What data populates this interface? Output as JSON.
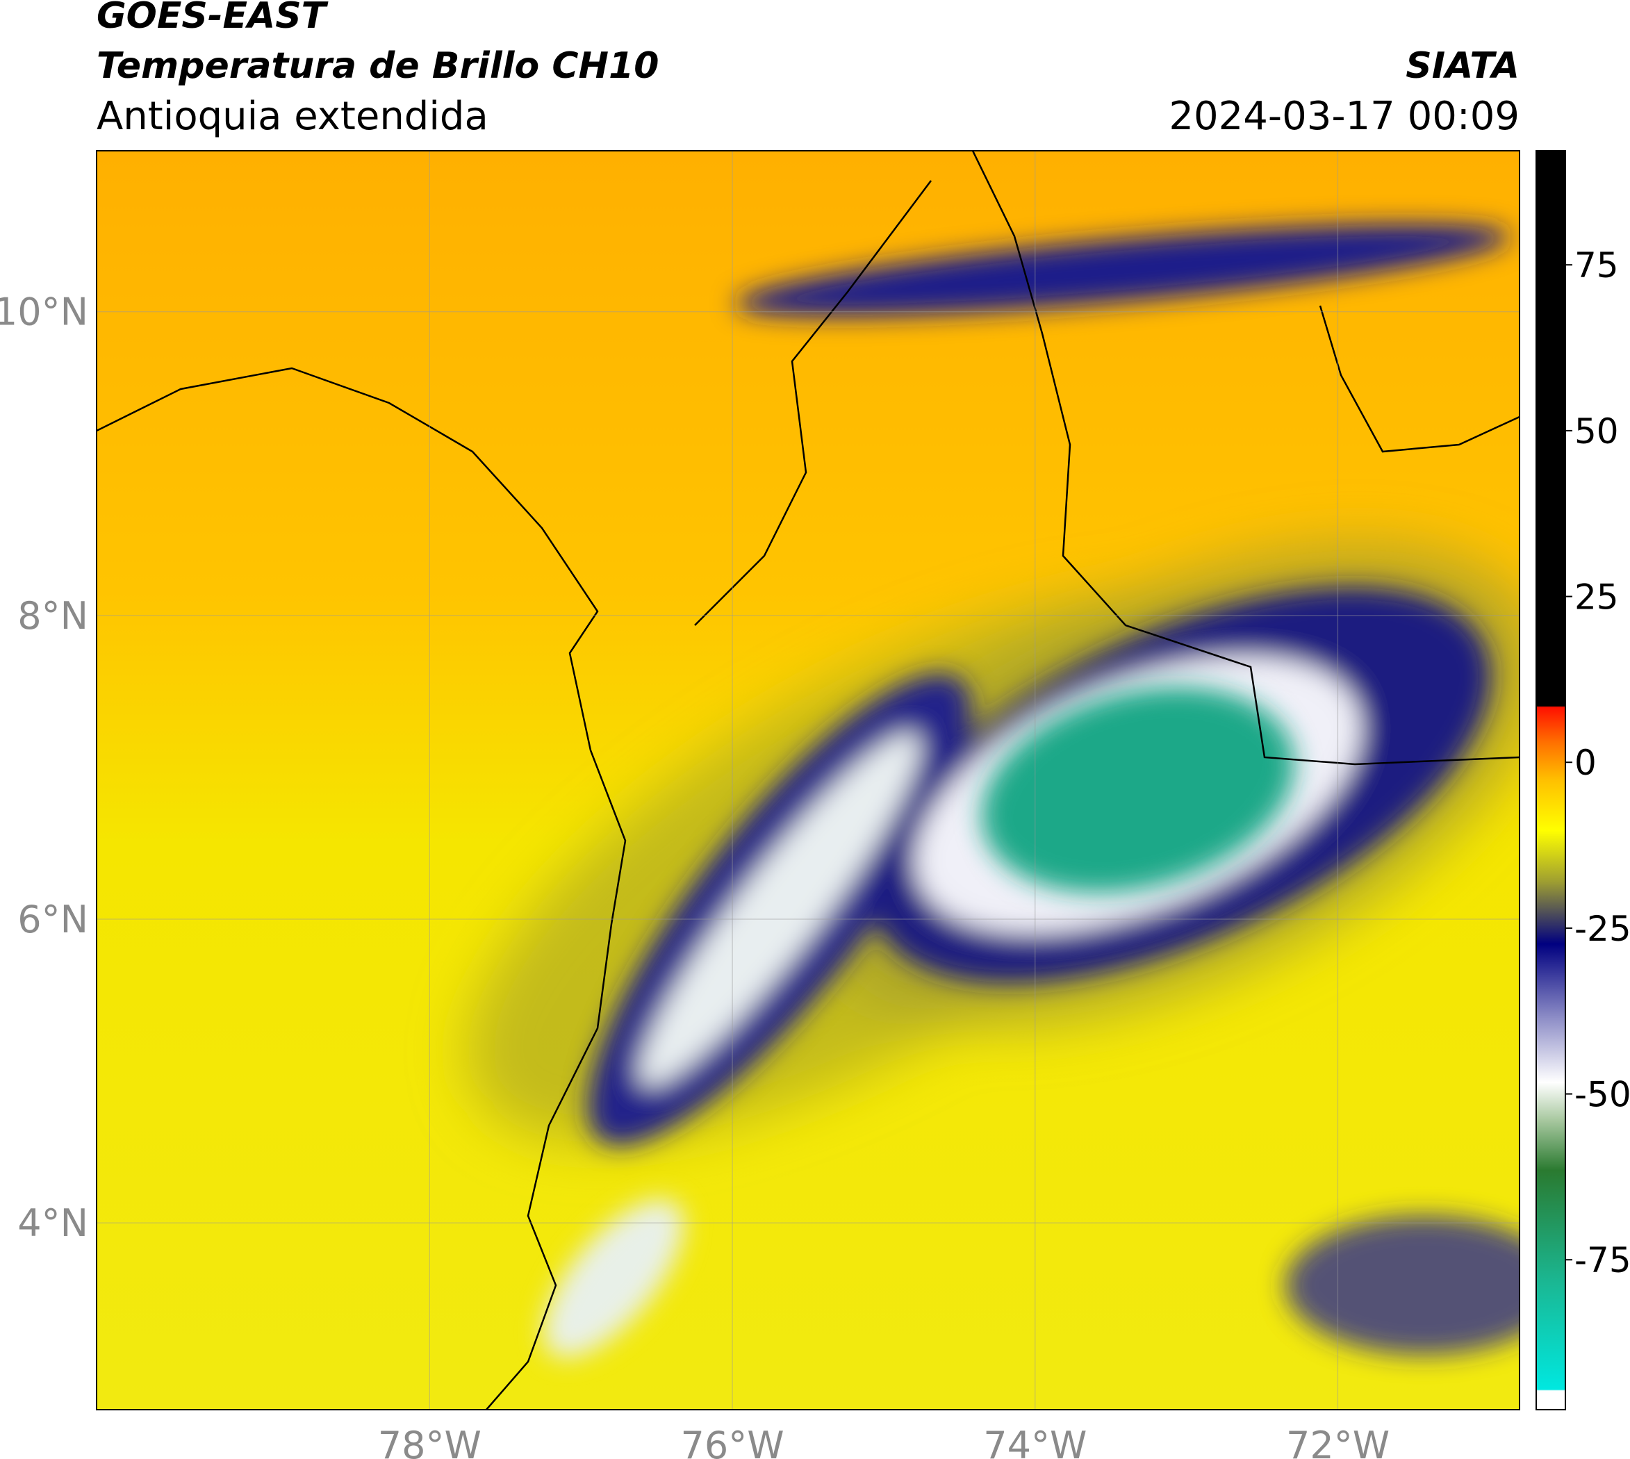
{
  "header": {
    "satellite": "GOES-EAST",
    "product": "Temperatura de Brillo CH10",
    "region": "Antioquia extendida",
    "organization": "SIATA",
    "datetime": "2024-03-17 00:09"
  },
  "map": {
    "xlim": [
      -80.2,
      -70.8
    ],
    "ylim": [
      2.77,
      11.06
    ],
    "xticks": [
      {
        "value": -78,
        "label": "78°W"
      },
      {
        "value": -76,
        "label": "76°W"
      },
      {
        "value": -74,
        "label": "74°W"
      },
      {
        "value": -72,
        "label": "72°W"
      }
    ],
    "yticks": [
      {
        "value": 4,
        "label": "4°N"
      },
      {
        "value": 6,
        "label": "6°N"
      },
      {
        "value": 8,
        "label": "8°N"
      },
      {
        "value": 10,
        "label": "10°N"
      }
    ]
  },
  "colorbar": {
    "range": [
      -97.6,
      92.2
    ],
    "ticks": [
      -75,
      -50,
      -25,
      0,
      25,
      50,
      75
    ]
  }
}
